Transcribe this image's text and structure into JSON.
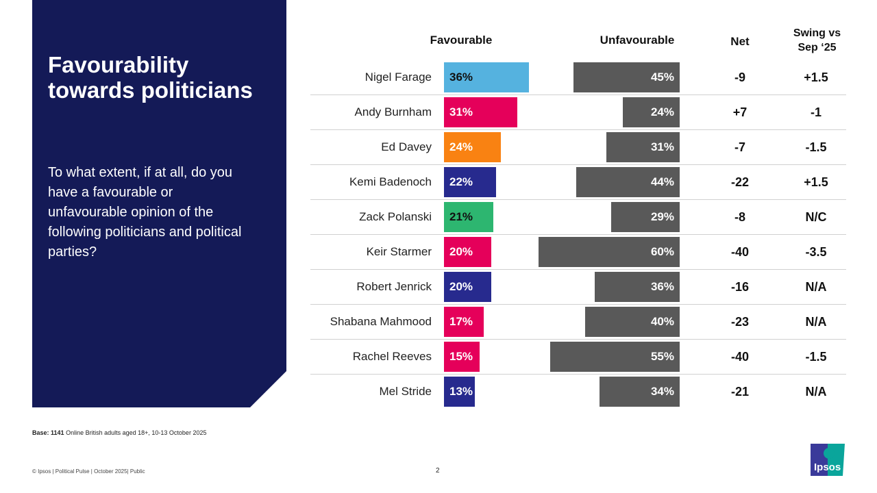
{
  "title": "Favourability towards politicians",
  "question": "To what extent, if at all, do you have a favourable or unfavourable opinion of the following politicians and political parties?",
  "base_label": "Base:",
  "base_value": "1141",
  "base_text": "Online British adults aged 18+,  10-13 October  2025",
  "footer": "© Ipsos | Political Pulse | October 2025| Public",
  "page_number": "2",
  "logo_text": "Ipsos",
  "chart_data": {
    "type": "bar",
    "columns": {
      "favourable": "Favourable",
      "unfavourable": "Unfavourable",
      "net": "Net",
      "swing": "Swing vs Sep ‘25"
    },
    "unfavourable_color": "#595959",
    "rows": [
      {
        "name": "Nigel Farage",
        "favourable": 36,
        "unfavourable": 45,
        "fav_label": "36%",
        "unf_label": "45%",
        "net": "-9",
        "swing": "+1.5",
        "color": "#55b2df",
        "label_color": "#111111"
      },
      {
        "name": "Andy Burnham",
        "favourable": 31,
        "unfavourable": 24,
        "fav_label": "31%",
        "unf_label": "24%",
        "net": "+7",
        "swing": "-1",
        "color": "#e5005a",
        "label_color": "#ffffff"
      },
      {
        "name": "Ed Davey",
        "favourable": 24,
        "unfavourable": 31,
        "fav_label": "24%",
        "unf_label": "31%",
        "net": "-7",
        "swing": "-1.5",
        "color": "#f98212",
        "label_color": "#ffffff"
      },
      {
        "name": "Kemi Badenoch",
        "favourable": 22,
        "unfavourable": 44,
        "fav_label": "22%",
        "unf_label": "44%",
        "net": "-22",
        "swing": "+1.5",
        "color": "#272a8e",
        "label_color": "#ffffff"
      },
      {
        "name": "Zack Polanski",
        "favourable": 21,
        "unfavourable": 29,
        "fav_label": "21%",
        "unf_label": "29%",
        "net": "-8",
        "swing": "N/C",
        "color": "#2db670",
        "label_color": "#111111"
      },
      {
        "name": "Keir Starmer",
        "favourable": 20,
        "unfavourable": 60,
        "fav_label": "20%",
        "unf_label": "60%",
        "net": "-40",
        "swing": "-3.5",
        "color": "#e5005a",
        "label_color": "#ffffff"
      },
      {
        "name": "Robert Jenrick",
        "favourable": 20,
        "unfavourable": 36,
        "fav_label": "20%",
        "unf_label": "36%",
        "net": "-16",
        "swing": "N/A",
        "color": "#272a8e",
        "label_color": "#ffffff"
      },
      {
        "name": "Shabana Mahmood",
        "favourable": 17,
        "unfavourable": 40,
        "fav_label": "17%",
        "unf_label": "40%",
        "net": "-23",
        "swing": "N/A",
        "color": "#e5005a",
        "label_color": "#ffffff"
      },
      {
        "name": "Rachel Reeves",
        "favourable": 15,
        "unfavourable": 55,
        "fav_label": "15%",
        "unf_label": "55%",
        "net": "-40",
        "swing": "-1.5",
        "color": "#e5005a",
        "label_color": "#ffffff"
      },
      {
        "name": "Mel Stride",
        "favourable": 13,
        "unfavourable": 34,
        "fav_label": "13%",
        "unf_label": "34%",
        "net": "-21",
        "swing": "N/A",
        "color": "#272a8e",
        "label_color": "#ffffff"
      }
    ]
  }
}
